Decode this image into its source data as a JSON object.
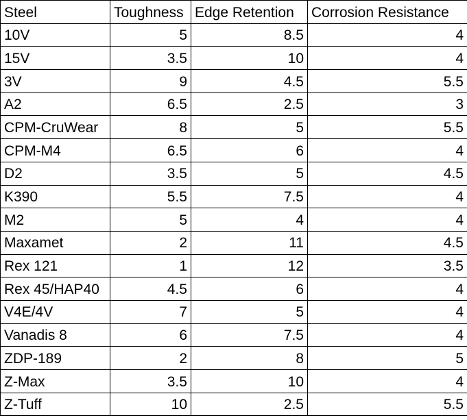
{
  "styles": {
    "border_color": "#000000",
    "text_color": "#000000",
    "background": "#ffffff"
  },
  "chart_data": {
    "type": "table",
    "columns": [
      "Steel",
      "Toughness",
      "Edge Retention",
      "Corrosion Resistance"
    ],
    "rows": [
      [
        "10V",
        5,
        8.5,
        4
      ],
      [
        "15V",
        3.5,
        10,
        4
      ],
      [
        "3V",
        9,
        4.5,
        5.5
      ],
      [
        "A2",
        6.5,
        2.5,
        3
      ],
      [
        "CPM-CruWear",
        8,
        5,
        5.5
      ],
      [
        "CPM-M4",
        6.5,
        6,
        4
      ],
      [
        "D2",
        3.5,
        5,
        4.5
      ],
      [
        "K390",
        5.5,
        7.5,
        4
      ],
      [
        "M2",
        5,
        4,
        4
      ],
      [
        "Maxamet",
        2,
        11,
        4.5
      ],
      [
        "Rex 121",
        1,
        12,
        3.5
      ],
      [
        "Rex 45/HAP40",
        4.5,
        6,
        4
      ],
      [
        "V4E/4V",
        7,
        5,
        4
      ],
      [
        "Vanadis 8",
        6,
        7.5,
        4
      ],
      [
        "ZDP-189",
        2,
        8,
        5
      ],
      [
        "Z-Max",
        3.5,
        10,
        4
      ],
      [
        "Z-Tuff",
        10,
        2.5,
        5.5
      ]
    ]
  }
}
